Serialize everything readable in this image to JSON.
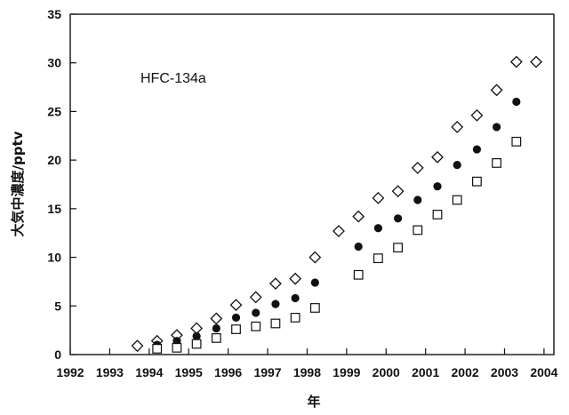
{
  "chart_data": {
    "type": "scatter",
    "title": "",
    "annotation": "HFC-134a",
    "xlabel": "年",
    "ylabel": "大気中濃度/pptv",
    "xlim": [
      1992.0,
      2004.25
    ],
    "ylim": [
      0,
      35
    ],
    "xticks": [
      "1992",
      "1993",
      "1994",
      "1995",
      "1996",
      "1997",
      "1998",
      "1999",
      "2000",
      "2001",
      "2002",
      "2003",
      "2004"
    ],
    "yticks": [
      "0",
      "5",
      "10",
      "15",
      "20",
      "25",
      "30",
      "35"
    ],
    "grid": false,
    "legend": "none",
    "series": [
      {
        "marker": "diamond",
        "x": [
          1993.7,
          1994.2,
          1994.7,
          1995.2,
          1995.7,
          1996.2,
          1996.7,
          1997.2,
          1997.7,
          1998.2,
          1998.8,
          1999.3,
          1999.8,
          2000.3,
          2000.8,
          2001.3,
          2001.8,
          2002.3,
          2002.8,
          2003.3,
          2003.8
        ],
        "values": [
          0.9,
          1.4,
          2.0,
          2.7,
          3.7,
          5.1,
          5.9,
          7.3,
          7.8,
          10.0,
          12.7,
          14.2,
          16.1,
          16.8,
          19.2,
          20.3,
          23.4,
          24.6,
          27.2,
          30.1,
          30.1
        ]
      },
      {
        "marker": "filled-circle",
        "x": [
          1994.2,
          1994.7,
          1995.2,
          1995.7,
          1996.2,
          1996.7,
          1997.2,
          1997.7,
          1998.2,
          1999.3,
          1999.8,
          2000.3,
          2000.8,
          2001.3,
          2001.8,
          2002.3,
          2002.8,
          2003.3
        ],
        "values": [
          1.0,
          1.4,
          1.9,
          2.7,
          3.8,
          4.3,
          5.2,
          5.8,
          7.4,
          11.1,
          13.0,
          14.0,
          15.9,
          17.3,
          19.5,
          21.1,
          23.4,
          26.0
        ]
      },
      {
        "marker": "open-square",
        "x": [
          1994.2,
          1994.7,
          1995.2,
          1995.7,
          1996.2,
          1996.7,
          1997.2,
          1997.7,
          1998.2,
          1999.3,
          1999.8,
          2000.3,
          2000.8,
          2001.3,
          2001.8,
          2002.3,
          2002.8,
          2003.3
        ],
        "values": [
          0.6,
          0.7,
          1.1,
          1.7,
          2.6,
          2.9,
          3.2,
          3.8,
          4.8,
          8.2,
          9.9,
          11.0,
          12.8,
          14.4,
          15.9,
          17.8,
          19.7,
          21.9
        ]
      }
    ]
  },
  "colors": {
    "ink": "#111111",
    "background": "#ffffff"
  }
}
